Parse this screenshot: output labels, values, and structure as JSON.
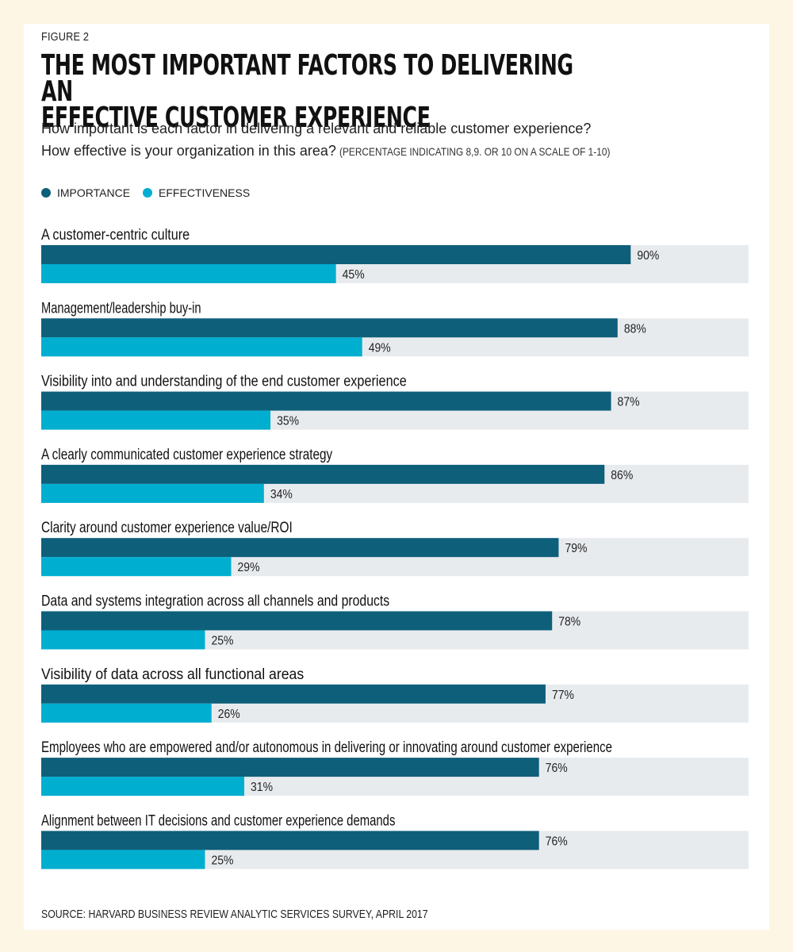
{
  "figure_label": "FIGURE 2",
  "title_line1": "THE MOST IMPORTANT FACTORS TO DELIVERING AN",
  "title_line2": "EFFECTIVE CUSTOMER EXPERIENCE",
  "subtitle_line1": "How important is each factor in delivering a relevant and reliable customer experience?",
  "subtitle_line2": "How effective is your organization in this area?",
  "subtitle_note": "(PERCENTAGE INDICATING 8,9. OR 10 ON A SCALE OF 1-10)",
  "source": "SOURCE: HARVARD BUSINESS REVIEW ANALYTIC SERVICES SURVEY, APRIL 2017",
  "colors": {
    "importance": "#0e5f7a",
    "effectiveness": "#00aed0",
    "track": "#e8ebee",
    "background": "#fdf6e4"
  },
  "chart_data": {
    "type": "bar",
    "orientation": "horizontal",
    "categories": [
      "A customer-centric culture",
      "Management/leadership buy-in",
      "Visibility into and understanding of the end customer experience",
      "A clearly communicated customer experience strategy",
      "Clarity around customer experience value/ROI",
      "Data and systems integration across all channels and products",
      "Visibility of data across all functional areas",
      "Employees who are empowered and/or autonomous in delivering or innovating around customer experience",
      "Alignment between IT decisions and customer experience demands"
    ],
    "series": [
      {
        "name": "IMPORTANCE",
        "values": [
          90,
          88,
          87,
          86,
          79,
          78,
          77,
          76,
          76
        ]
      },
      {
        "name": "EFFECTIVENESS",
        "values": [
          45,
          49,
          35,
          34,
          29,
          25,
          26,
          31,
          25
        ]
      }
    ],
    "value_suffix": "%",
    "xlim": [
      0,
      108
    ],
    "legend": "top-left"
  }
}
